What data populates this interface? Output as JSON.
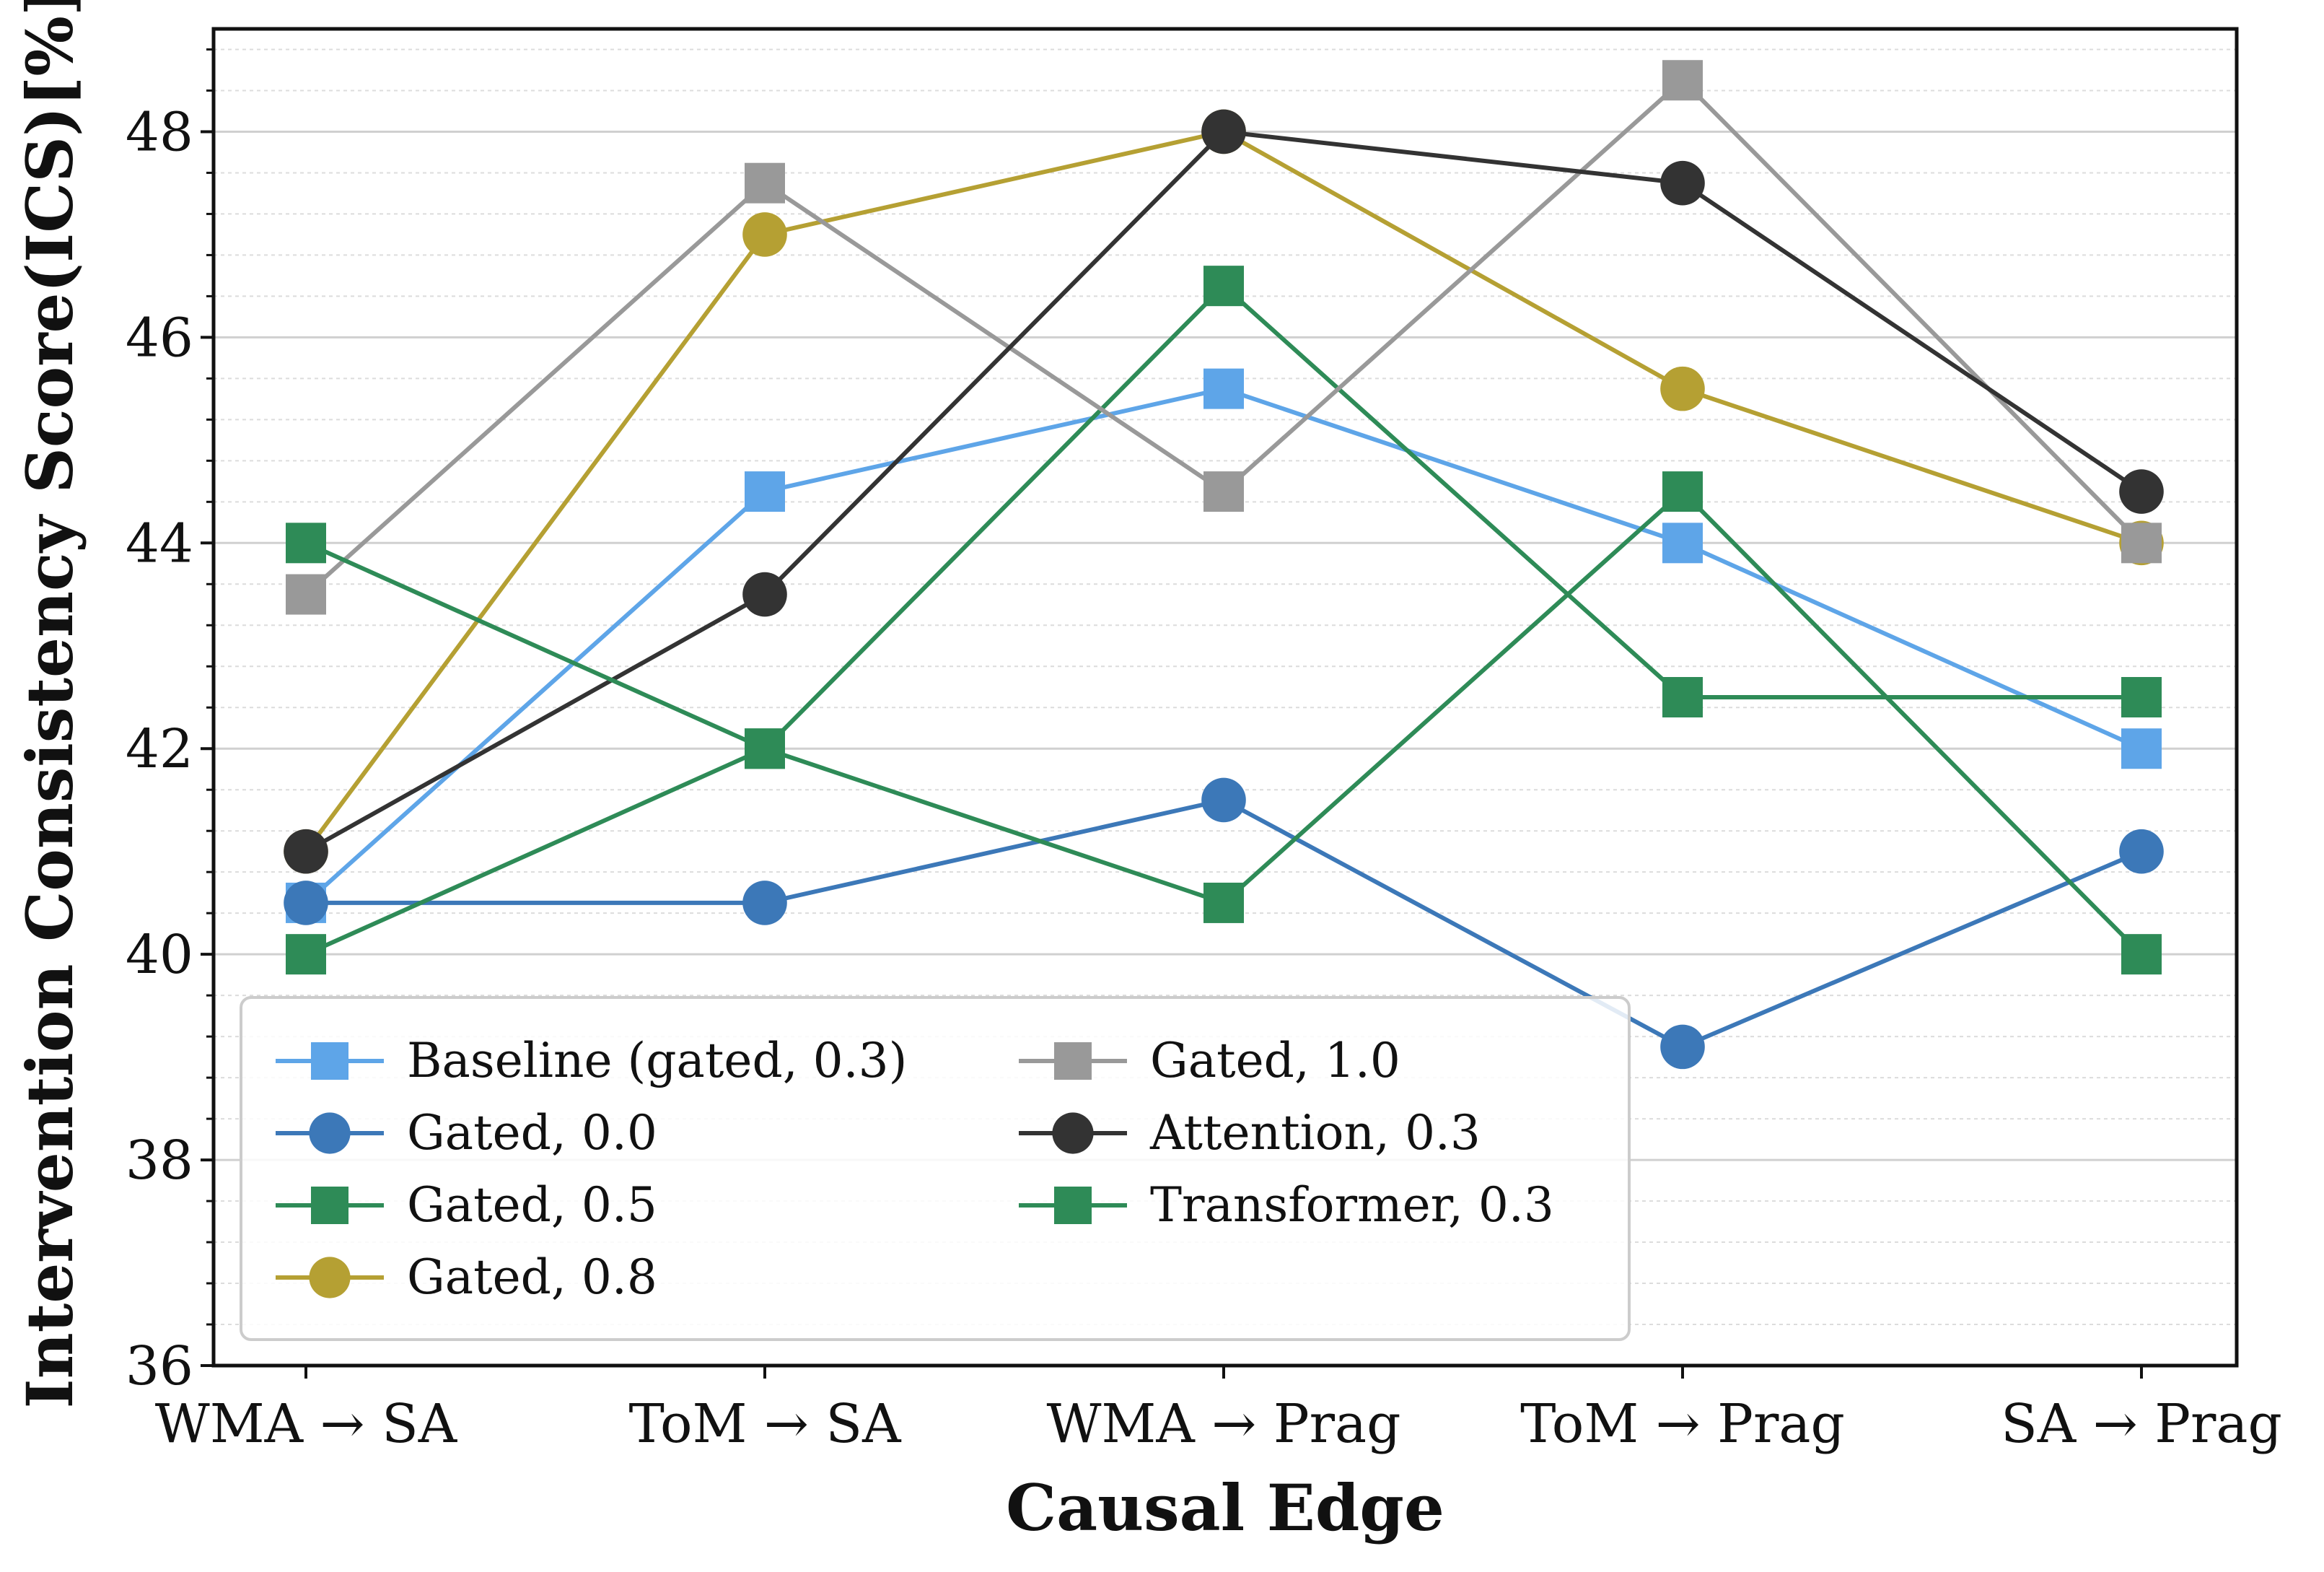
{
  "chart_data": {
    "type": "line",
    "title": "",
    "xlabel": "Causal Edge",
    "ylabel": "Intervention Consistency Score(ICS)[%]",
    "categories": [
      "WMA → SA",
      "ToM → SA",
      "WMA → Prag",
      "ToM → Prag",
      "SA → Prag"
    ],
    "ylim": [
      36,
      49
    ],
    "yticks": [
      36,
      38,
      40,
      42,
      44,
      46,
      48
    ],
    "ytick_labels": [
      "36",
      "38",
      "40",
      "42",
      "44",
      "46",
      "48"
    ],
    "grid": "y-major and y-minor",
    "legend_position": "lower-left",
    "series": [
      {
        "name": "Baseline (gated, 0.3)",
        "values": [
          40.5,
          44.5,
          45.5,
          44.0,
          42.0
        ],
        "marker": "square",
        "color": "#5ea5e8"
      },
      {
        "name": "Gated, 0.0",
        "values": [
          40.5,
          40.5,
          41.5,
          39.1,
          41.0
        ],
        "marker": "circle",
        "color": "#3c78b8"
      },
      {
        "name": "Gated, 0.5",
        "values": [
          40.0,
          42.0,
          46.5,
          42.5,
          42.5
        ],
        "marker": "square",
        "color": "#2e8b57"
      },
      {
        "name": "Gated, 0.8",
        "values": [
          41.0,
          47.0,
          48.0,
          45.5,
          44.0
        ],
        "marker": "circle",
        "color": "#b5a033"
      },
      {
        "name": "Gated, 1.0",
        "values": [
          43.5,
          47.5,
          44.5,
          48.5,
          44.0
        ],
        "marker": "square",
        "color": "#999999"
      },
      {
        "name": "Attention, 0.3",
        "values": [
          41.0,
          43.5,
          48.0,
          47.5,
          44.5
        ],
        "marker": "circle",
        "color": "#333333"
      },
      {
        "name": "Transformer, 0.3",
        "values": [
          44.0,
          42.0,
          40.5,
          44.5,
          40.0
        ],
        "marker": "square",
        "color": "#2e8b57"
      }
    ]
  }
}
